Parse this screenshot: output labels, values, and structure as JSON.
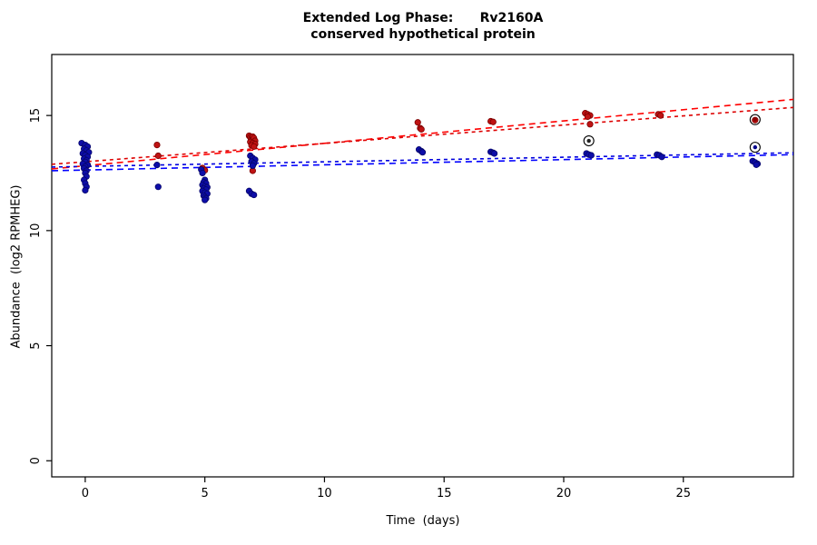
{
  "title": {
    "line1": "Extended Log Phase:      Rv2160A",
    "line2": "conserved hypothetical protein"
  },
  "chart_data": {
    "type": "scatter",
    "title": "Extended Log Phase: Rv2160A — conserved hypothetical protein",
    "xlabel": "Time  (days)",
    "ylabel": "Abundance  (log2 RPMHEG)",
    "xlim": [
      -1.4,
      29.6
    ],
    "ylim": [
      -0.7,
      17.65
    ],
    "xticks": [
      0,
      5,
      10,
      15,
      20,
      25
    ],
    "yticks": [
      0,
      5,
      10,
      15
    ],
    "grid": false,
    "legend": "none",
    "series": [
      {
        "name": "red-condition-points",
        "color": "#bf1313",
        "stroke": "#7a0000",
        "points": [
          [
            0.0,
            13.3
          ],
          [
            0.1,
            12.85
          ],
          [
            3.0,
            13.72
          ],
          [
            3.05,
            13.25
          ],
          [
            4.9,
            12.72
          ],
          [
            5.0,
            12.62
          ],
          [
            6.85,
            14.12
          ],
          [
            6.9,
            14.05
          ],
          [
            6.95,
            14.0
          ],
          [
            7.0,
            14.08
          ],
          [
            7.0,
            13.95
          ],
          [
            7.05,
            14.02
          ],
          [
            7.1,
            13.9
          ],
          [
            6.9,
            13.85
          ],
          [
            7.0,
            13.8
          ],
          [
            7.1,
            13.76
          ],
          [
            6.95,
            13.7
          ],
          [
            7.05,
            13.65
          ],
          [
            7.0,
            12.6
          ],
          [
            13.9,
            14.7
          ],
          [
            14.0,
            14.45
          ],
          [
            14.05,
            14.4
          ],
          [
            16.95,
            14.75
          ],
          [
            17.05,
            14.72
          ],
          [
            20.9,
            15.1
          ],
          [
            21.0,
            15.05
          ],
          [
            21.1,
            15.0
          ],
          [
            21.0,
            14.95
          ],
          [
            21.1,
            14.62
          ],
          [
            23.95,
            15.05
          ],
          [
            24.05,
            15.0
          ],
          [
            28.0,
            14.8
          ]
        ]
      },
      {
        "name": "blue-condition-points",
        "color": "#0d0da8",
        "stroke": "#06066a",
        "points": [
          [
            -0.15,
            13.8
          ],
          [
            0.0,
            13.72
          ],
          [
            0.1,
            13.65
          ],
          [
            -0.05,
            13.55
          ],
          [
            0.05,
            13.48
          ],
          [
            0.15,
            13.4
          ],
          [
            -0.1,
            13.35
          ],
          [
            0.0,
            13.28
          ],
          [
            0.1,
            13.2
          ],
          [
            -0.05,
            13.12
          ],
          [
            0.05,
            13.05
          ],
          [
            0.0,
            12.98
          ],
          [
            -0.1,
            12.9
          ],
          [
            0.1,
            12.85
          ],
          [
            0.0,
            12.78
          ],
          [
            -0.05,
            12.7
          ],
          [
            0.05,
            12.6
          ],
          [
            0.0,
            12.5
          ],
          [
            0.05,
            12.35
          ],
          [
            -0.05,
            12.2
          ],
          [
            0.0,
            12.05
          ],
          [
            0.05,
            11.9
          ],
          [
            0.0,
            11.75
          ],
          [
            3.0,
            12.85
          ],
          [
            3.05,
            11.9
          ],
          [
            4.85,
            12.65
          ],
          [
            4.9,
            12.5
          ],
          [
            5.0,
            12.2
          ],
          [
            4.95,
            12.1
          ],
          [
            5.05,
            12.05
          ],
          [
            4.9,
            11.98
          ],
          [
            5.0,
            11.92
          ],
          [
            5.1,
            11.88
          ],
          [
            4.95,
            11.82
          ],
          [
            5.05,
            11.78
          ],
          [
            4.9,
            11.72
          ],
          [
            5.0,
            11.65
          ],
          [
            5.1,
            11.6
          ],
          [
            4.95,
            11.52
          ],
          [
            5.0,
            11.45
          ],
          [
            5.05,
            11.4
          ],
          [
            5.0,
            11.33
          ],
          [
            6.9,
            13.25
          ],
          [
            7.0,
            13.15
          ],
          [
            7.1,
            13.08
          ],
          [
            6.95,
            13.0
          ],
          [
            7.05,
            12.92
          ],
          [
            7.0,
            12.82
          ],
          [
            6.85,
            11.72
          ],
          [
            6.95,
            11.6
          ],
          [
            7.05,
            11.55
          ],
          [
            13.95,
            13.52
          ],
          [
            14.05,
            13.45
          ],
          [
            14.1,
            13.4
          ],
          [
            16.95,
            13.42
          ],
          [
            17.05,
            13.38
          ],
          [
            17.1,
            13.35
          ],
          [
            20.95,
            13.35
          ],
          [
            21.05,
            13.3
          ],
          [
            21.15,
            13.27
          ],
          [
            23.9,
            13.3
          ],
          [
            24.0,
            13.27
          ],
          [
            24.1,
            13.2
          ],
          [
            27.9,
            13.02
          ],
          [
            28.0,
            12.96
          ],
          [
            28.1,
            12.9
          ],
          [
            28.05,
            12.86
          ]
        ]
      }
    ],
    "circled_points": [
      {
        "x": 21.05,
        "y": 13.9,
        "fill": "#222222"
      },
      {
        "x": 28.0,
        "y": 14.82,
        "fill": "#8b0000"
      },
      {
        "x": 28.0,
        "y": 13.62,
        "fill": "#00008b"
      }
    ],
    "fit_lines": [
      {
        "name": "red-fit-long-dash",
        "color": "#ff0000",
        "dash": "7,5",
        "x1": -1.4,
        "y1": 12.68,
        "x2": 29.6,
        "y2": 15.7
      },
      {
        "name": "red-fit-short-dash",
        "color": "#dd0000",
        "dash": "4,4",
        "x1": -1.4,
        "y1": 12.88,
        "x2": 29.6,
        "y2": 15.35
      },
      {
        "name": "blue-fit-long-dash",
        "color": "#0000ff",
        "dash": "7,5",
        "x1": -1.4,
        "y1": 12.6,
        "x2": 29.6,
        "y2": 13.3
      },
      {
        "name": "blue-fit-short-dash",
        "color": "#0000dd",
        "dash": "4,4",
        "x1": -1.4,
        "y1": 12.76,
        "x2": 29.6,
        "y2": 13.38
      }
    ],
    "axis_color": "#000000",
    "background": "#ffffff"
  }
}
